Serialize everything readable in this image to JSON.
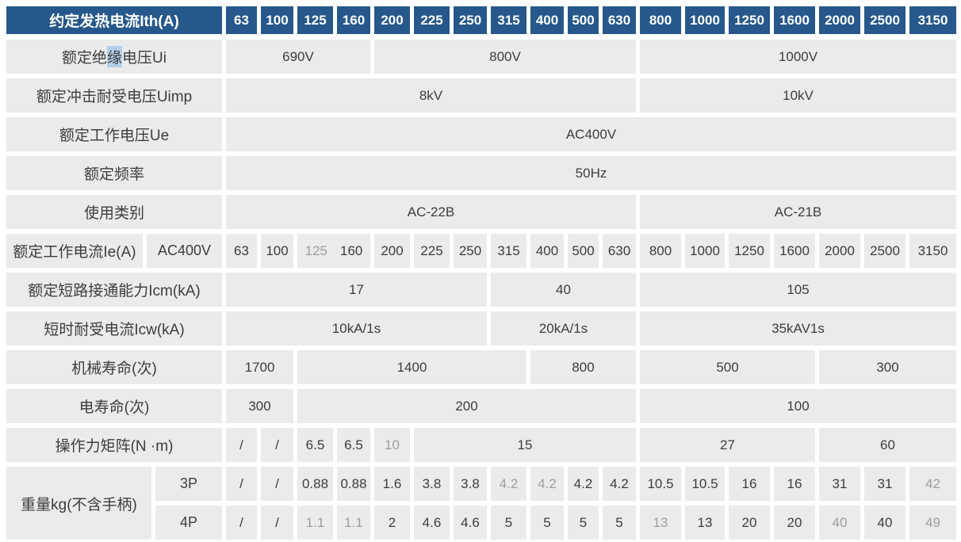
{
  "colors": {
    "header_bg": "#26588b",
    "header_text": "#ffffff",
    "cell_bg": "#ebebeb",
    "text_dark": "#3d3d3d",
    "text_gray": "#9e9e9e",
    "selection_highlight": "#b4cfe9"
  },
  "rows": [
    {
      "name": "ith",
      "label": "约定发热电流Ith(A)",
      "cells": [
        "63",
        "100",
        "125",
        "160",
        "200",
        "225",
        "250",
        "315",
        "400",
        "500",
        "630",
        "800",
        "1000",
        "1250",
        "1600",
        "2000",
        "2500",
        "3150"
      ]
    },
    {
      "name": "ui",
      "label_pre": "额定绝",
      "label_hl": "缘",
      "label_post": "电压Ui",
      "cells": [
        {
          "t": "690V",
          "span": 4
        },
        {
          "t": "800V",
          "span": 7
        },
        {
          "t": "1000V",
          "span": 7
        }
      ]
    },
    {
      "name": "uimp",
      "label": "额定冲击耐受电压Uimp",
      "cells": [
        {
          "t": "8kV",
          "span": 11
        },
        {
          "t": "10kV",
          "span": 7
        }
      ]
    },
    {
      "name": "ue",
      "label": "额定工作电压Ue",
      "cells": [
        {
          "t": "AC400V",
          "span": 18
        }
      ]
    },
    {
      "name": "freq",
      "label": "额定频率",
      "cells": [
        {
          "t": "50Hz",
          "span": 18
        }
      ]
    },
    {
      "name": "category",
      "label": "使用类别",
      "cells": [
        {
          "t": "AC-22B",
          "span": 11
        },
        {
          "t": "AC-21B",
          "span": 7
        }
      ]
    },
    {
      "name": "ie",
      "label": "额定工作电流Ie(A)",
      "label2": "AC400V",
      "cells": [
        {
          "t": "63"
        },
        {
          "t": "100"
        },
        {
          "span": 2,
          "parts": [
            {
              "t": "125",
              "gray": true
            },
            {
              "t": "160"
            }
          ]
        },
        {
          "t": "200"
        },
        {
          "t": "225"
        },
        {
          "t": "250"
        },
        {
          "t": "315"
        },
        {
          "t": "400"
        },
        {
          "t": "500"
        },
        {
          "t": "630"
        },
        {
          "t": "800"
        },
        {
          "t": "1000"
        },
        {
          "t": "1250"
        },
        {
          "t": "1600"
        },
        {
          "t": "2000"
        },
        {
          "t": "2500"
        },
        {
          "t": "3150"
        }
      ]
    },
    {
      "name": "icm",
      "label": "额定短路接通能力Icm(kA)",
      "cells": [
        {
          "t": "17",
          "span": 7
        },
        {
          "t": "40",
          "span": 4
        },
        {
          "t": "105",
          "span": 7
        }
      ]
    },
    {
      "name": "icw",
      "label": "短时耐受电流Icw(kA)",
      "cells": [
        {
          "t": "10kA/1s",
          "span": 7
        },
        {
          "t": "20kA/1s",
          "span": 4
        },
        {
          "t": "35kAV1s",
          "span": 7
        }
      ]
    },
    {
      "name": "mech-life",
      "label": "机械寿命(次)",
      "cells": [
        {
          "t": "1700",
          "span": 2
        },
        {
          "t": "1400",
          "span": 6
        },
        {
          "t": "800",
          "span": 3
        },
        {
          "t": "500",
          "span": 4
        },
        {
          "t": "300",
          "span": 3
        }
      ]
    },
    {
      "name": "elec-life",
      "label": "电寿命(次)",
      "cells": [
        {
          "t": "300",
          "span": 2
        },
        {
          "t": "200",
          "span": 9
        },
        {
          "t": "100",
          "span": 7
        }
      ]
    },
    {
      "name": "torque",
      "label": "操作力矩阵(N ·m)",
      "cells": [
        {
          "t": "/"
        },
        {
          "t": "/"
        },
        {
          "t": "6.5"
        },
        {
          "t": "6.5"
        },
        {
          "t": "10",
          "gray": true
        },
        {
          "t": "15",
          "span": 6
        },
        {
          "t": "27",
          "span": 4
        },
        {
          "t": "60",
          "span": 3
        }
      ]
    },
    {
      "name": "weight-3p",
      "cells": [
        {
          "t": "/"
        },
        {
          "t": "/"
        },
        {
          "t": "0.88"
        },
        {
          "t": "0.88"
        },
        {
          "t": "1.6"
        },
        {
          "t": "3.8"
        },
        {
          "t": "3.8"
        },
        {
          "t": "4.2",
          "gray": true
        },
        {
          "t": "4.2",
          "gray": true
        },
        {
          "t": "4.2"
        },
        {
          "t": "4.2"
        },
        {
          "t": "10.5"
        },
        {
          "t": "10.5"
        },
        {
          "t": "16"
        },
        {
          "t": "16"
        },
        {
          "t": "31"
        },
        {
          "t": "31"
        },
        {
          "t": "42",
          "gray": true
        }
      ]
    },
    {
      "name": "weight-4p",
      "cells": [
        {
          "t": "/"
        },
        {
          "t": "/"
        },
        {
          "t": "1.1",
          "gray": true
        },
        {
          "t": "1.1",
          "gray": true
        },
        {
          "t": "2"
        },
        {
          "t": "4.6"
        },
        {
          "t": "4.6"
        },
        {
          "t": "5"
        },
        {
          "t": "5"
        },
        {
          "t": "5"
        },
        {
          "t": "5"
        },
        {
          "t": "13",
          "gray": true
        },
        {
          "t": "13"
        },
        {
          "t": "20"
        },
        {
          "t": "20"
        },
        {
          "t": "40",
          "gray": true
        },
        {
          "t": "40"
        },
        {
          "t": "49",
          "gray": true
        }
      ]
    }
  ],
  "weight": {
    "label": "重量kg(不含手柄)",
    "sub_3p": "3P",
    "sub_4p": "4P"
  }
}
